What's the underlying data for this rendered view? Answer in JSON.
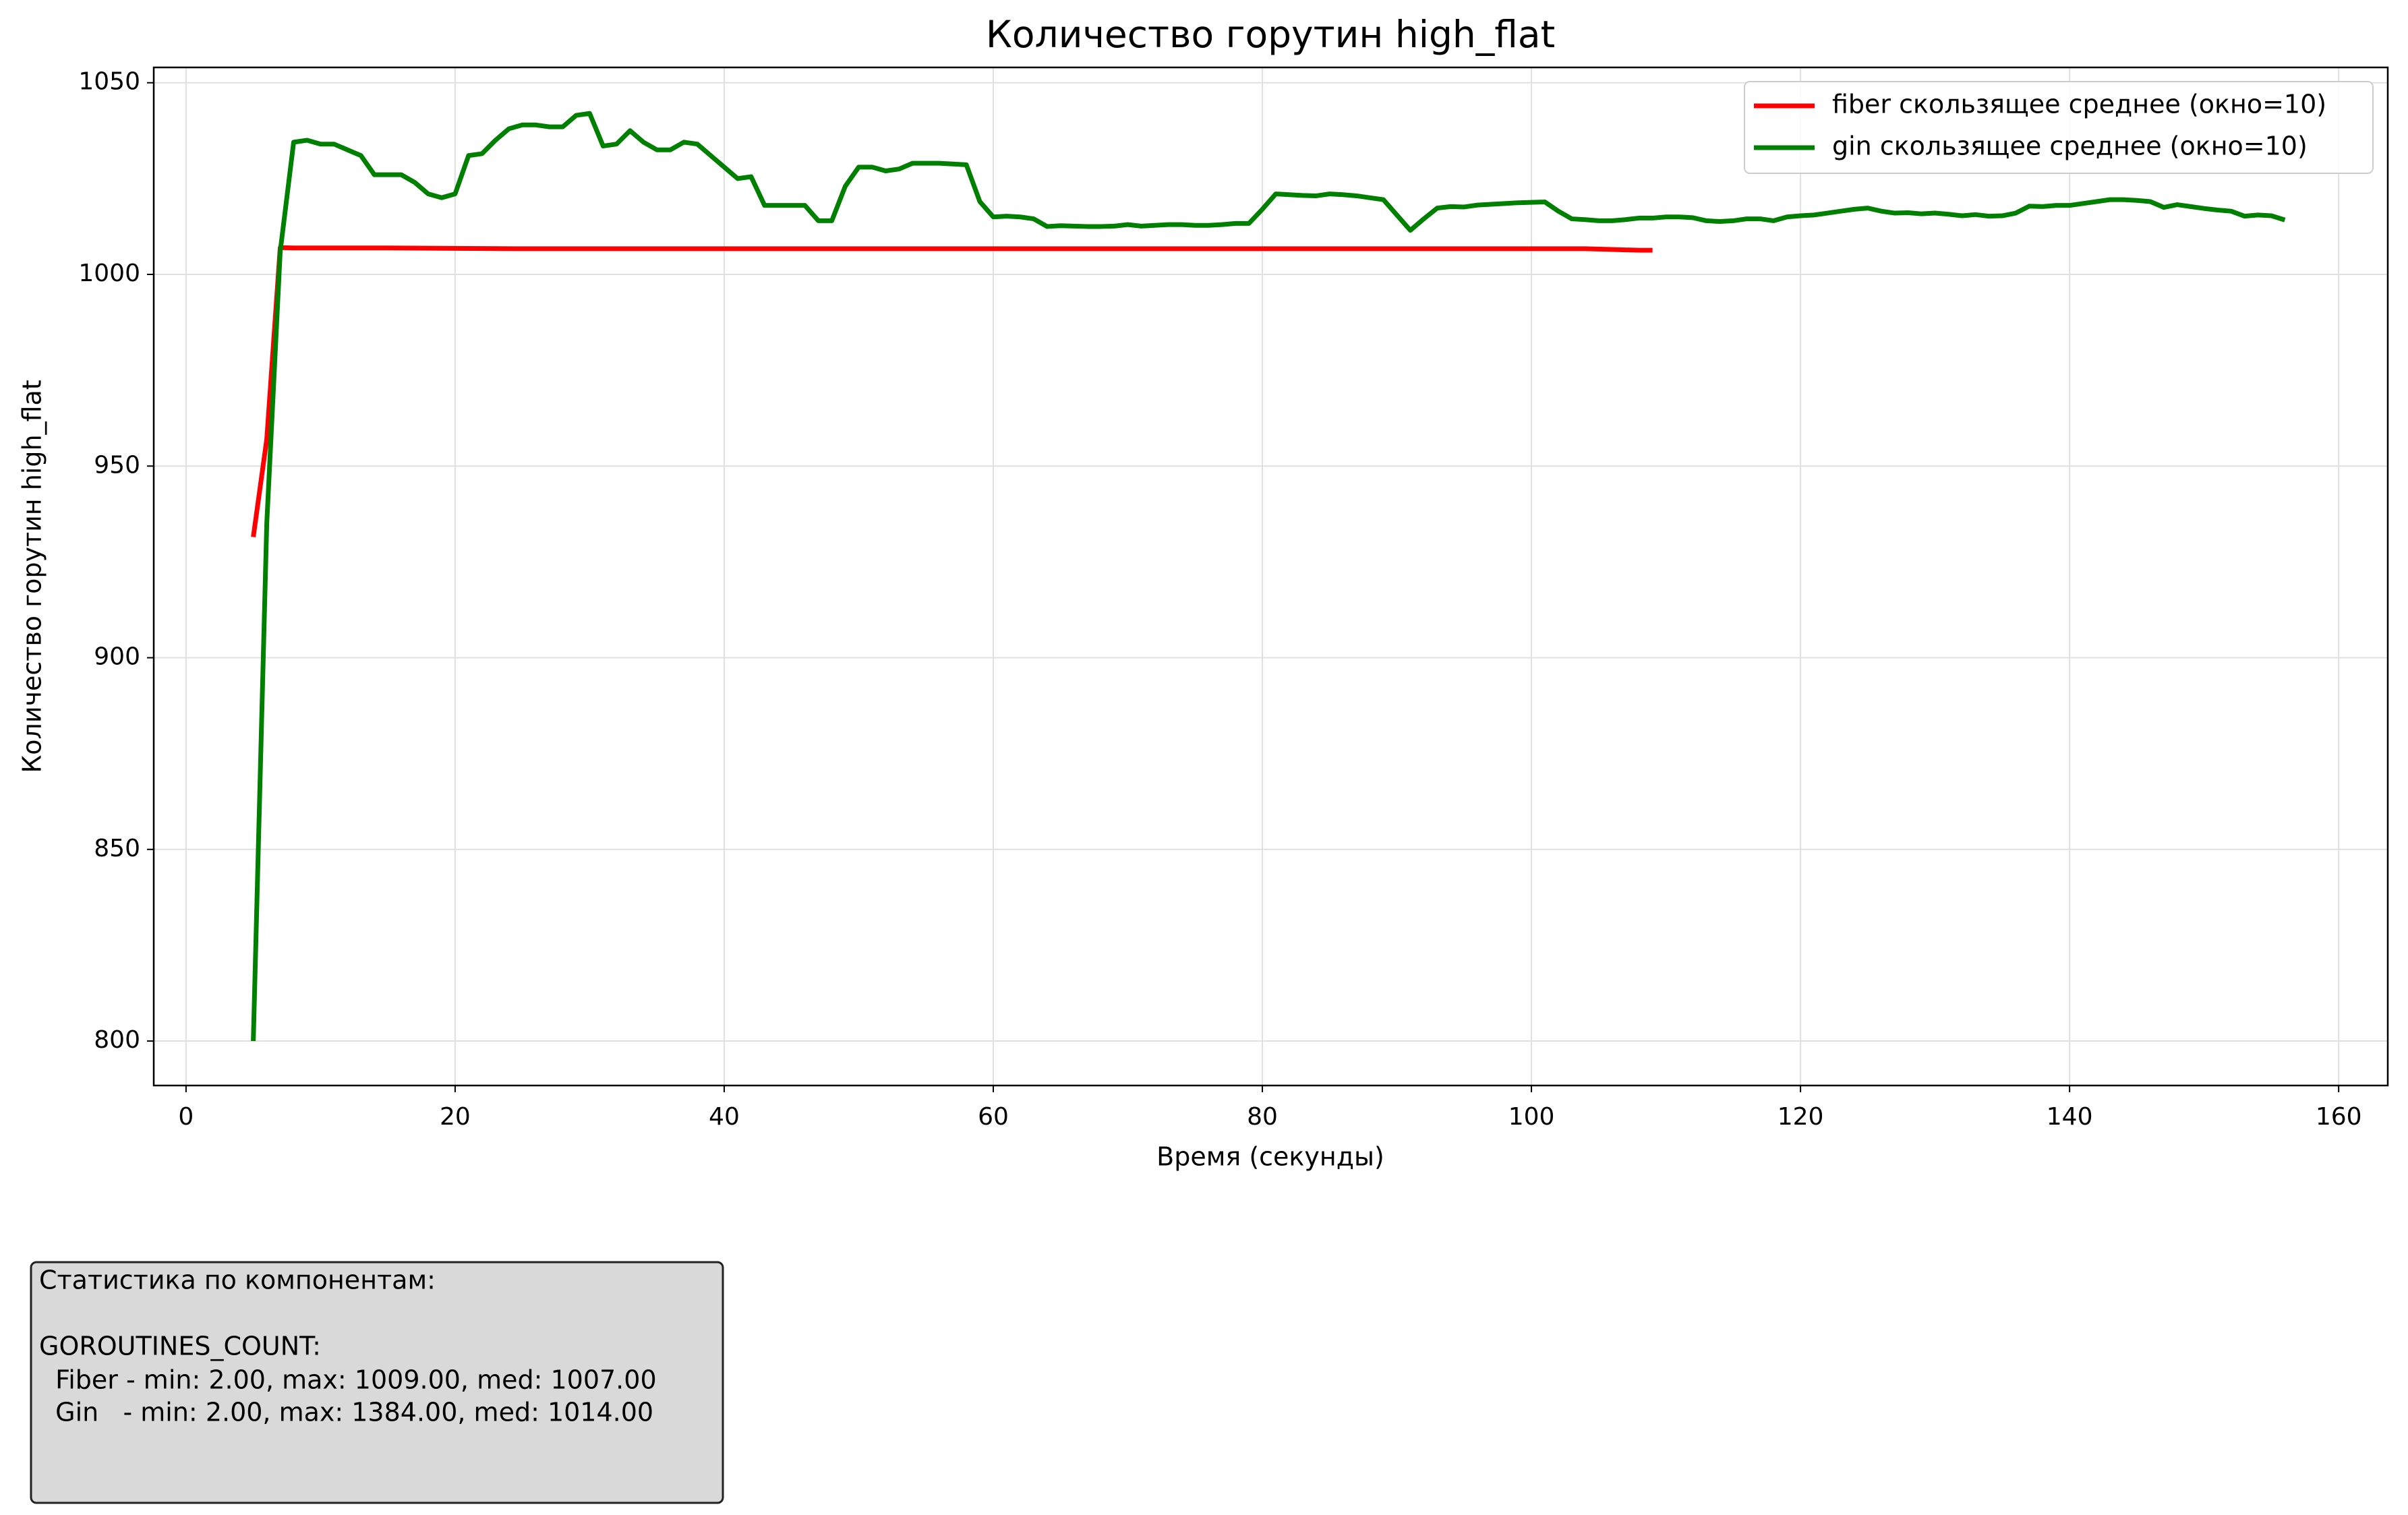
{
  "chart_data": {
    "type": "line",
    "title": "Количество горутин high_flat",
    "xlabel": "Время (секунды)",
    "ylabel": "Количество горутин high_flat",
    "xlim": [
      -2.4,
      163.65
    ],
    "ylim": [
      788.4,
      1054
    ],
    "xticks": [
      0,
      20,
      40,
      60,
      80,
      100,
      120,
      140,
      160
    ],
    "yticks": [
      800,
      850,
      900,
      950,
      1000,
      1050
    ],
    "grid": true,
    "legend": "upper right",
    "series": [
      {
        "name": "fiber скользящее среднее (окно=10)",
        "color": "#ff0000",
        "x": [
          5,
          6,
          7,
          8,
          10,
          15,
          20,
          25,
          30,
          40,
          50,
          60,
          70,
          80,
          90,
          100,
          104,
          106,
          108,
          109
        ],
        "values": [
          931.5,
          957,
          1007,
          1006.9,
          1006.9,
          1006.9,
          1006.8,
          1006.7,
          1006.7,
          1006.7,
          1006.7,
          1006.7,
          1006.7,
          1006.7,
          1006.7,
          1006.7,
          1006.7,
          1006.5,
          1006.3,
          1006.3
        ]
      },
      {
        "name": "gin скользящее среднее (окно=10)",
        "color": "#008000",
        "x": [
          5,
          6,
          7,
          8,
          9,
          10,
          11,
          12,
          13,
          14,
          15,
          16,
          17,
          18,
          19,
          20,
          21,
          22,
          23,
          24,
          25,
          26,
          27,
          28,
          29,
          30,
          31,
          32,
          33,
          34,
          35,
          36,
          37,
          38,
          39,
          40,
          41,
          42,
          43,
          44,
          45,
          46,
          47,
          48,
          49,
          50,
          51,
          52,
          53,
          54,
          55,
          56,
          57,
          58,
          59,
          60,
          61,
          62,
          63,
          64,
          65,
          66,
          67,
          68,
          69,
          70,
          71,
          72,
          73,
          74,
          75,
          76,
          77,
          78,
          79,
          80,
          81,
          82,
          83,
          84,
          85,
          86,
          87,
          88,
          89,
          90,
          91,
          92,
          93,
          94,
          95,
          96,
          97,
          98,
          99,
          100,
          101,
          102,
          103,
          104,
          105,
          106,
          107,
          108,
          109,
          110,
          111,
          112,
          113,
          114,
          115,
          116,
          117,
          118,
          119,
          120,
          121,
          122,
          123,
          124,
          125,
          126,
          127,
          128,
          129,
          130,
          131,
          132,
          133,
          134,
          135,
          136,
          137,
          138,
          139,
          140,
          141,
          142,
          143,
          144,
          145,
          146,
          147,
          148,
          149,
          150,
          151,
          152,
          153,
          154,
          155,
          156
        ],
        "values": [
          800,
          935,
          1006,
          1034.5,
          1035,
          1034,
          1034,
          1032.5,
          1031,
          1026,
          1026,
          1026,
          1024,
          1021,
          1020,
          1021,
          1031,
          1031.5,
          1035,
          1038,
          1039,
          1039,
          1038.5,
          1038.5,
          1041.5,
          1042,
          1033.5,
          1034,
          1037.5,
          1034.5,
          1032.5,
          1032.5,
          1034.5,
          1034,
          1031,
          1028,
          1025,
          1025.5,
          1018,
          1018,
          1018,
          1018,
          1014,
          1014,
          1023,
          1028,
          1028,
          1027,
          1027.5,
          1029,
          1029,
          1029,
          1028.8,
          1028.6,
          1019,
          1015,
          1015.2,
          1015,
          1014.5,
          1012.5,
          1012.7,
          1012.6,
          1012.5,
          1012.5,
          1012.6,
          1013,
          1012.6,
          1012.8,
          1013,
          1013,
          1012.8,
          1012.8,
          1013,
          1013.3,
          1013.3,
          1017,
          1021,
          1020.8,
          1020.6,
          1020.5,
          1021,
          1020.8,
          1020.5,
          1020,
          1019.5,
          1015.5,
          1011.5,
          1014.5,
          1017.3,
          1017.7,
          1017.6,
          1018.1,
          1018.3,
          1018.5,
          1018.7,
          1018.8,
          1018.9,
          1016.5,
          1014.5,
          1014.3,
          1014,
          1014,
          1014.3,
          1014.7,
          1014.7,
          1015,
          1015,
          1014.8,
          1014,
          1013.8,
          1014,
          1014.5,
          1014.5,
          1014,
          1015,
          1015.3,
          1015.5,
          1016,
          1016.5,
          1017,
          1017.3,
          1016.5,
          1016,
          1016.1,
          1015.8,
          1016,
          1015.7,
          1015.3,
          1015.6,
          1015.2,
          1015.3,
          1016,
          1017.8,
          1017.7,
          1018,
          1018,
          1018.5,
          1019,
          1019.5,
          1019.5,
          1019.3,
          1019,
          1017.5,
          1018.2,
          1017.7,
          1017.2,
          1016.8,
          1016.5,
          1015.2,
          1015.5,
          1015.3,
          1014.2
        ]
      }
    ],
    "annotation": [
      "Статистика по компонентам:",
      "GOROUTINES_COUNT:",
      "  Fiber - min: 2.00, max: 1009.00, med: 1007.00",
      "  Gin   - min: 2.00, max: 1384.00, med: 1014.00"
    ]
  }
}
